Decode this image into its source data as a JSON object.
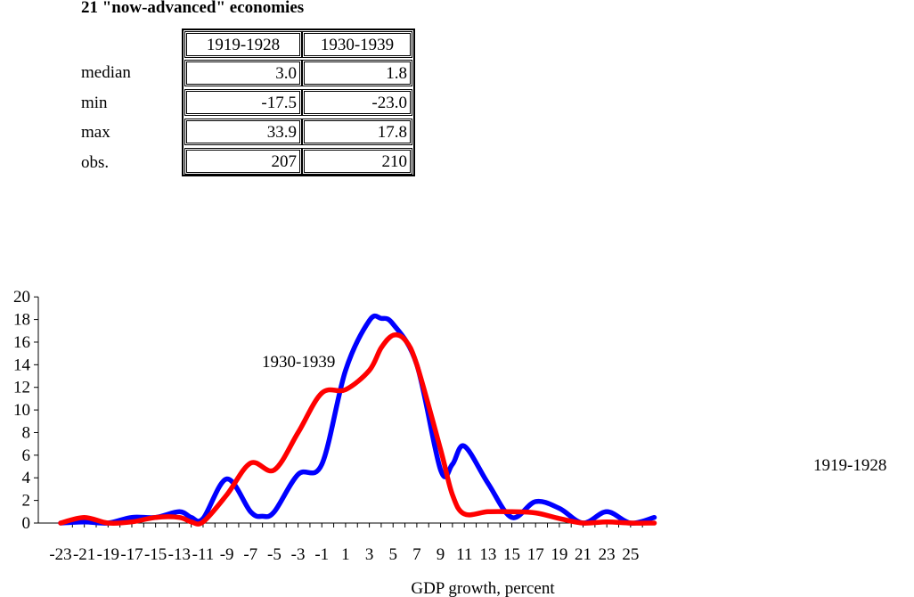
{
  "subtitle": "21 \"now-advanced\" economies",
  "stats_table": {
    "headers": [
      "1919-1928",
      "1930-1939"
    ],
    "rows": [
      {
        "label": "median",
        "values": [
          "3.0",
          "1.8"
        ]
      },
      {
        "label": "min",
        "values": [
          "-17.5",
          "-23.0"
        ]
      },
      {
        "label": "max",
        "values": [
          "33.9",
          "17.8"
        ]
      },
      {
        "label": "obs.",
        "values": [
          "207",
          "210"
        ]
      }
    ]
  },
  "annotations": {
    "series_1930": "1930-1939",
    "series_1919": "1919-1928"
  },
  "chart_data": {
    "type": "line",
    "title": "",
    "subtitle": "21 \"now-advanced\" economies",
    "xlabel": "GDP growth, percent",
    "ylabel": "",
    "x_ticks": [
      "-23",
      "-21",
      "-19",
      "-17",
      "-15",
      "-13",
      "-11",
      "-9",
      "-7",
      "-5",
      "-3",
      "-1",
      "1",
      "3",
      "5",
      "7",
      "9",
      "11",
      "13",
      "15",
      "17",
      "19",
      "21",
      "23",
      "25"
    ],
    "y_ticks": [
      "0",
      "2",
      "4",
      "6",
      "8",
      "10",
      "12",
      "14",
      "16",
      "18",
      "20"
    ],
    "ylim": [
      0,
      20
    ],
    "xlim": [
      -23,
      27
    ],
    "grid": false,
    "series": [
      {
        "name": "1919-1928",
        "color": "#0000ff",
        "x": [
          -23,
          -21,
          -19,
          -17,
          -15,
          -13,
          -12,
          -11,
          -9,
          -7,
          -6,
          -5,
          -3,
          -1,
          1,
          3,
          4,
          5,
          7,
          9,
          10,
          11,
          13,
          15,
          17,
          19,
          21,
          23,
          25,
          27
        ],
        "y": [
          0,
          0.1,
          0,
          0.5,
          0.5,
          1.0,
          0.5,
          0.4,
          3.9,
          1.0,
          0.6,
          1.0,
          4.3,
          5.2,
          13.5,
          17.9,
          18.1,
          17.6,
          14.0,
          4.7,
          5.2,
          6.8,
          3.5,
          0.5,
          1.9,
          1.3,
          0,
          1.0,
          0,
          0.5
        ]
      },
      {
        "name": "1930-1939",
        "color": "#ff0000",
        "x": [
          -23,
          -21,
          -19,
          -17,
          -15,
          -13,
          -12,
          -11,
          -9,
          -7,
          -5,
          -3,
          -1,
          1,
          3,
          4,
          5,
          6,
          7,
          9,
          10,
          11,
          13,
          15,
          17,
          19,
          21,
          23,
          25,
          27
        ],
        "y": [
          0,
          0.5,
          0,
          0.1,
          0.5,
          0.5,
          0.1,
          0.1,
          2.5,
          5.3,
          4.7,
          8.0,
          11.5,
          11.8,
          13.5,
          15.5,
          16.6,
          16.2,
          14.0,
          6.5,
          2.5,
          0.8,
          1.0,
          1.0,
          0.9,
          0.4,
          0,
          0.1,
          0,
          0
        ]
      }
    ]
  }
}
